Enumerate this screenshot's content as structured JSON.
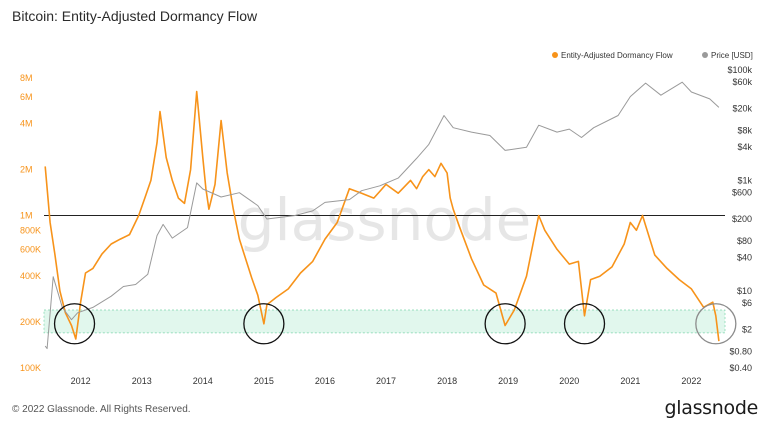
{
  "header": {
    "title": "Bitcoin: Entity-Adjusted Dormancy Flow"
  },
  "footer": {
    "copyright": "© 2022 Glassnode. All Rights Reserved.",
    "brand": "glassnode"
  },
  "watermark": "glassnode",
  "colors": {
    "dormancy": "#f7931a",
    "price": "#9a9a9a",
    "band": "#c8f0de",
    "reference": "#222222"
  },
  "chart_data": {
    "type": "line",
    "legend": {
      "placement": "top-right",
      "entries": [
        "Entity-Adjusted Dormancy Flow",
        "Price [USD]"
      ]
    },
    "x_ticks": [
      "2012",
      "2013",
      "2014",
      "2015",
      "2016",
      "2017",
      "2018",
      "2019",
      "2020",
      "2021",
      "2022"
    ],
    "x_range": [
      2011.4,
      2022.55
    ],
    "y_left": {
      "scale": "log",
      "range": [
        100000,
        9000000
      ],
      "ticks": [
        {
          "v": 100000,
          "label": "100K"
        },
        {
          "v": 200000,
          "label": "200K"
        },
        {
          "v": 400000,
          "label": "400K"
        },
        {
          "v": 600000,
          "label": "600K"
        },
        {
          "v": 800000,
          "label": "800K"
        },
        {
          "v": 1000000,
          "label": "1M"
        },
        {
          "v": 2000000,
          "label": "2M"
        },
        {
          "v": 4000000,
          "label": "4M"
        },
        {
          "v": 6000000,
          "label": "6M"
        },
        {
          "v": 8000000,
          "label": "8M"
        }
      ]
    },
    "y_right": {
      "scale": "log",
      "range": [
        0.4,
        100000
      ],
      "ticks": [
        {
          "v": 100000,
          "label": "$100k"
        },
        {
          "v": 60000,
          "label": "$60k"
        },
        {
          "v": 20000,
          "label": "$20k"
        },
        {
          "v": 8000,
          "label": "$8k"
        },
        {
          "v": 4000,
          "label": "$4k"
        },
        {
          "v": 1000,
          "label": "$1k"
        },
        {
          "v": 600,
          "label": "$600"
        },
        {
          "v": 200,
          "label": "$200"
        },
        {
          "v": 80,
          "label": "$80"
        },
        {
          "v": 40,
          "label": "$40"
        },
        {
          "v": 10,
          "label": "$10"
        },
        {
          "v": 6,
          "label": "$6"
        },
        {
          "v": 2,
          "label": "$2"
        },
        {
          "v": 0.8,
          "label": "$0.80"
        },
        {
          "v": 0.4,
          "label": "$0.40"
        }
      ]
    },
    "reference_line": 1000000,
    "band": [
      170000,
      240000
    ],
    "highlight_circles": [
      2011.9,
      2015.0,
      2018.95,
      2020.25,
      2022.4
    ],
    "series": [
      {
        "name": "Entity-Adjusted Dormancy Flow",
        "axis": "left",
        "x": [
          2011.42,
          2011.5,
          2011.58,
          2011.66,
          2011.75,
          2011.85,
          2011.92,
          2012.0,
          2012.08,
          2012.2,
          2012.35,
          2012.5,
          2012.65,
          2012.8,
          2012.95,
          2013.05,
          2013.15,
          2013.25,
          2013.3,
          2013.4,
          2013.5,
          2013.6,
          2013.7,
          2013.8,
          2013.9,
          2014.0,
          2014.05,
          2014.1,
          2014.2,
          2014.3,
          2014.4,
          2014.5,
          2014.6,
          2014.7,
          2014.8,
          2014.9,
          2015.0,
          2015.05,
          2015.2,
          2015.4,
          2015.6,
          2015.8,
          2016.0,
          2016.2,
          2016.4,
          2016.6,
          2016.8,
          2017.0,
          2017.2,
          2017.4,
          2017.5,
          2017.6,
          2017.7,
          2017.8,
          2017.9,
          2018.0,
          2018.05,
          2018.1,
          2018.2,
          2018.4,
          2018.6,
          2018.8,
          2018.95,
          2019.1,
          2019.3,
          2019.5,
          2019.6,
          2019.8,
          2020.0,
          2020.15,
          2020.25,
          2020.35,
          2020.5,
          2020.7,
          2020.9,
          2021.0,
          2021.1,
          2021.2,
          2021.4,
          2021.6,
          2021.8,
          2022.0,
          2022.2,
          2022.35,
          2022.4,
          2022.45
        ],
        "y": [
          2100000,
          900000,
          550000,
          320000,
          230000,
          190000,
          155000,
          270000,
          420000,
          450000,
          560000,
          650000,
          700000,
          750000,
          1000000,
          1300000,
          1700000,
          3000000,
          4800000,
          2400000,
          1700000,
          1300000,
          1200000,
          2000000,
          6500000,
          2400000,
          1500000,
          1100000,
          1600000,
          4200000,
          1900000,
          1100000,
          700000,
          520000,
          390000,
          300000,
          195000,
          260000,
          290000,
          330000,
          420000,
          500000,
          700000,
          900000,
          1500000,
          1400000,
          1300000,
          1600000,
          1400000,
          1700000,
          1500000,
          1800000,
          2000000,
          1800000,
          2200000,
          1900000,
          1300000,
          1100000,
          850000,
          520000,
          350000,
          310000,
          190000,
          240000,
          400000,
          1000000,
          800000,
          600000,
          480000,
          500000,
          220000,
          380000,
          400000,
          460000,
          650000,
          900000,
          800000,
          1000000,
          550000,
          450000,
          380000,
          330000,
          250000,
          270000,
          220000,
          150000
        ]
      },
      {
        "name": "Price [USD]",
        "axis": "right",
        "x": [
          2011.42,
          2011.45,
          2011.55,
          2011.7,
          2011.85,
          2011.95,
          2012.2,
          2012.5,
          2012.7,
          2012.9,
          2013.1,
          2013.25,
          2013.35,
          2013.5,
          2013.75,
          2013.9,
          2014.0,
          2014.3,
          2014.6,
          2014.9,
          2015.05,
          2015.5,
          2015.8,
          2016.0,
          2016.4,
          2016.6,
          2016.9,
          2017.2,
          2017.5,
          2017.7,
          2017.95,
          2018.1,
          2018.4,
          2018.7,
          2018.95,
          2019.3,
          2019.5,
          2019.8,
          2020.0,
          2020.2,
          2020.4,
          2020.8,
          2021.0,
          2021.25,
          2021.5,
          2021.85,
          2022.0,
          2022.3,
          2022.45
        ],
        "y": [
          1,
          0.9,
          18,
          5,
          3,
          4,
          5,
          8,
          12,
          13,
          20,
          100,
          160,
          90,
          140,
          900,
          700,
          500,
          600,
          350,
          200,
          230,
          280,
          400,
          450,
          650,
          800,
          1100,
          2500,
          4500,
          15000,
          9000,
          7500,
          6500,
          3500,
          4000,
          10000,
          7500,
          8500,
          6000,
          9000,
          15000,
          33000,
          58000,
          35000,
          60000,
          40000,
          30000,
          21000
        ]
      }
    ]
  }
}
